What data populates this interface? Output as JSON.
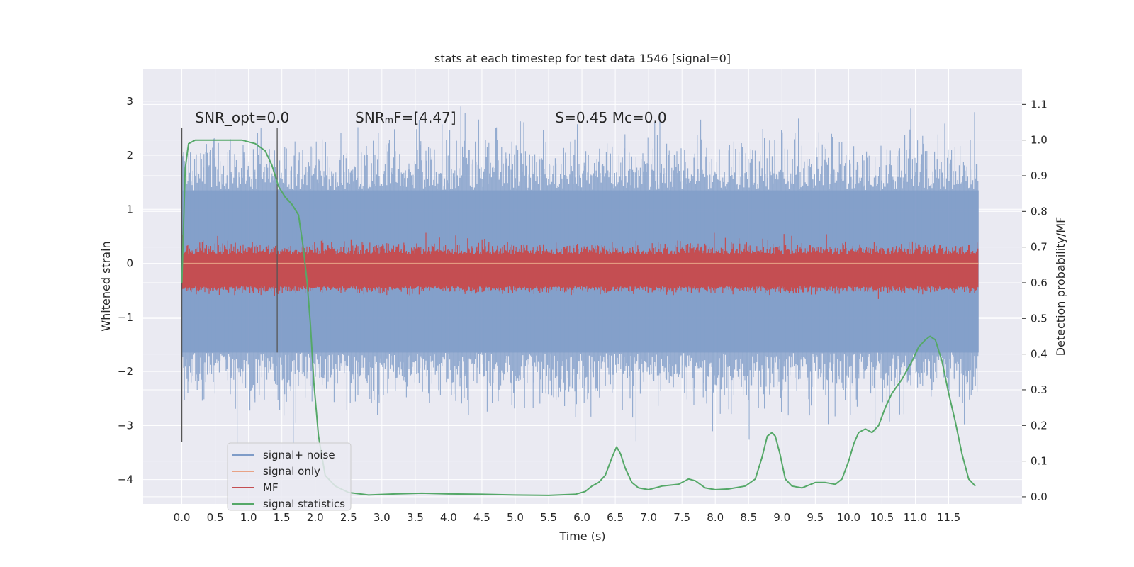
{
  "chart_data": {
    "type": "line",
    "title": "stats at each timestep for test data 1546 [signal=0]",
    "xlabel": "Time (s)",
    "ylabel": "Whitened strain",
    "y2label": "Detection probability/MF",
    "xlim": [
      -0.58,
      12.6
    ],
    "ylim": [
      -4.45,
      3.6
    ],
    "y2lim": [
      -0.02,
      1.2
    ],
    "grid": true,
    "x_ticks": [
      0.0,
      0.5,
      1.0,
      1.5,
      2.0,
      2.5,
      3.0,
      3.5,
      4.0,
      4.5,
      5.0,
      5.5,
      6.0,
      6.5,
      7.0,
      7.5,
      8.0,
      8.5,
      9.0,
      9.5,
      10.0,
      10.5,
      11.0,
      11.5
    ],
    "x_tick_labels": [
      "0.0",
      "0.5",
      "1.0",
      "1.5",
      "2.0",
      "2.5",
      "3.0",
      "3.5",
      "4.0",
      "4.5",
      "5.0",
      "5.5",
      "6.0",
      "6.5",
      "7.0",
      "7.5",
      "8.0",
      "8.5",
      "9.0",
      "9.5",
      "10.0",
      "10.5",
      "11.0",
      "11.5"
    ],
    "y_ticks": [
      3,
      2,
      1,
      0,
      -1,
      -2,
      -3,
      -4
    ],
    "y_tick_labels": [
      "3",
      "2",
      "1",
      "0",
      "−1",
      "−2",
      "−3",
      "−4"
    ],
    "y2_ticks": [
      1.1,
      1.0,
      0.9,
      0.8,
      0.7,
      0.6,
      0.5,
      0.4,
      0.3,
      0.2,
      0.1,
      0.0
    ],
    "y2_tick_labels": [
      "1.1",
      "1.0",
      "0.9",
      "0.8",
      "0.7",
      "0.6",
      "0.5",
      "0.4",
      "0.3",
      "0.2",
      "0.1",
      "0.0"
    ],
    "annotations": [
      {
        "text": "SNR_opt=0.0",
        "x": 0.2,
        "y": 2.5
      },
      {
        "text": "SNRₘF=[4.47]",
        "x": 2.6,
        "y": 2.5
      },
      {
        "text": "S=0.45   Mᴄ=0.0",
        "x": 5.6,
        "y": 2.5
      }
    ],
    "vertical_lines": [
      {
        "x": 0.0,
        "y_from": -3.3,
        "y_to": 2.5
      },
      {
        "x": 1.43,
        "y_from": -1.65,
        "y_to": 2.5
      }
    ],
    "legend": {
      "position": "lower-left",
      "entries": [
        "signal+ noise",
        "signal only",
        "MF",
        "signal statistics"
      ]
    },
    "colors": {
      "signal_noise": "#7f9cc8",
      "signal_only": "#e8a386",
      "mf": "#c44e52",
      "signal_statistics": "#55a868",
      "vline": "#555555",
      "panel_bg": "#eaeaf2",
      "grid": "#ffffff"
    },
    "series": [
      {
        "name": "signal+ noise",
        "axis": "left",
        "style": "noise",
        "x_range": [
          0.0,
          11.95
        ],
        "envelope_center": 0.0,
        "envelope_upper": 1.35,
        "envelope_lower": -1.65,
        "typical_peak": 2.4,
        "max": 3.25,
        "min": -4.1
      },
      {
        "name": "signal only",
        "axis": "left",
        "style": "flat",
        "x_range": [
          0.0,
          11.95
        ],
        "value": 0.0
      },
      {
        "name": "MF",
        "axis": "right",
        "style": "noise",
        "x_range": [
          0.0,
          11.95
        ],
        "envelope_lower": 0.59,
        "envelope_upper": 0.68,
        "max": 0.74
      },
      {
        "name": "signal statistics",
        "axis": "right",
        "style": "line",
        "x": [
          0.0,
          0.05,
          0.1,
          0.2,
          0.3,
          0.5,
          0.7,
          0.9,
          1.1,
          1.25,
          1.35,
          1.45,
          1.55,
          1.65,
          1.75,
          1.82,
          1.88,
          1.93,
          1.98,
          2.05,
          2.15,
          2.3,
          2.5,
          2.8,
          3.2,
          3.6,
          4.0,
          4.5,
          5.0,
          5.5,
          5.9,
          6.05,
          6.15,
          6.25,
          6.35,
          6.45,
          6.52,
          6.58,
          6.65,
          6.75,
          6.85,
          7.0,
          7.2,
          7.45,
          7.6,
          7.7,
          7.85,
          8.0,
          8.2,
          8.45,
          8.6,
          8.7,
          8.78,
          8.85,
          8.9,
          8.97,
          9.05,
          9.15,
          9.3,
          9.5,
          9.65,
          9.8,
          9.9,
          10.0,
          10.08,
          10.15,
          10.25,
          10.35,
          10.45,
          10.55,
          10.65,
          10.8,
          10.95,
          11.05,
          11.15,
          11.22,
          11.3,
          11.4,
          11.5,
          11.6,
          11.7,
          11.8,
          11.9
        ],
        "y": [
          0.6,
          0.92,
          0.99,
          1.0,
          1.0,
          1.0,
          1.0,
          1.0,
          0.99,
          0.97,
          0.93,
          0.87,
          0.84,
          0.82,
          0.79,
          0.7,
          0.6,
          0.48,
          0.32,
          0.17,
          0.06,
          0.03,
          0.012,
          0.005,
          0.008,
          0.01,
          0.008,
          0.007,
          0.005,
          0.004,
          0.007,
          0.015,
          0.03,
          0.04,
          0.06,
          0.11,
          0.14,
          0.12,
          0.08,
          0.04,
          0.025,
          0.02,
          0.03,
          0.035,
          0.05,
          0.045,
          0.025,
          0.02,
          0.022,
          0.03,
          0.05,
          0.11,
          0.17,
          0.18,
          0.17,
          0.12,
          0.05,
          0.03,
          0.025,
          0.04,
          0.04,
          0.035,
          0.05,
          0.1,
          0.15,
          0.18,
          0.19,
          0.18,
          0.2,
          0.25,
          0.29,
          0.33,
          0.38,
          0.42,
          0.44,
          0.45,
          0.44,
          0.38,
          0.29,
          0.21,
          0.12,
          0.05,
          0.03
        ]
      }
    ]
  }
}
